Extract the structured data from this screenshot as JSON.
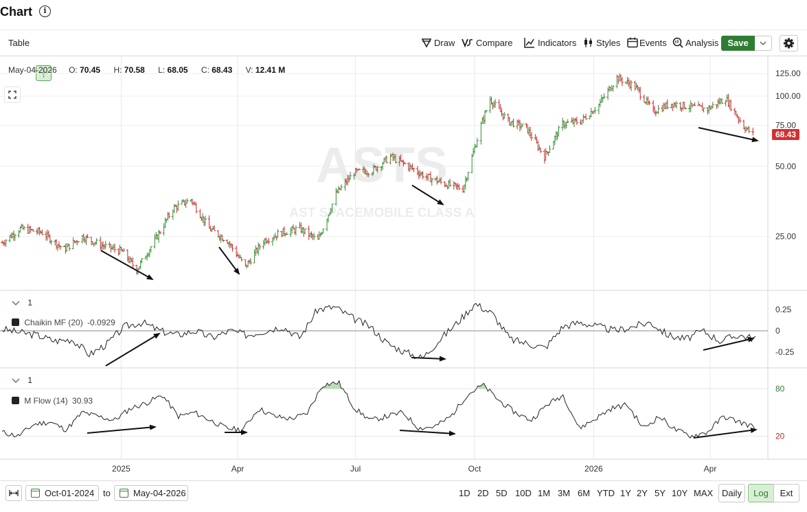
{
  "header": {
    "title": "Chart",
    "info_icon": "info-icon"
  },
  "toolbar": {
    "table_label": "Table",
    "draw_label": "Draw",
    "compare_label": "Compare",
    "indicators_label": "Indicators",
    "styles_label": "Styles",
    "events_label": "Events",
    "analysis_label": "Analysis",
    "save_label": "Save"
  },
  "ohlc": {
    "date": "May-04-2026",
    "open_label": "O:",
    "open": "70.45",
    "high_label": "H:",
    "high": "70.58",
    "low_label": "L:",
    "low": "68.05",
    "close_label": "C:",
    "close": "68.43",
    "volume_label": "V:",
    "volume": "12.41 M"
  },
  "watermark": {
    "symbol": "ASTS",
    "name": "AST SPACEMOBILE CLASS A"
  },
  "panels": {
    "chaikin": {
      "collapse_count": "1",
      "label": "Chaikin MF (20)",
      "value": "-0.0929"
    },
    "mflow": {
      "collapse_count": "1",
      "label": "M Flow (14)",
      "value": "30.93"
    }
  },
  "colors": {
    "up": "#2e8b2e",
    "down": "#c62828",
    "accent": "#2e7d32",
    "last_price_bg": "#d32f2f",
    "mfi_fill": "#b9dfb5"
  },
  "chart_data": {
    "type": "ohlc",
    "price_scale": "log",
    "last_price": "68.43",
    "y_ticks": [
      "125.00",
      "100.00",
      "75.00",
      "50.00",
      "25.00"
    ],
    "x_ticks": [
      "2025",
      "Apr",
      "Jul",
      "Oct",
      "2026",
      "Apr"
    ],
    "price_series": [
      [
        "2024-10-01",
        23.5
      ],
      [
        "2024-10-15",
        27
      ],
      [
        "2024-11-01",
        26
      ],
      [
        "2024-11-18",
        22
      ],
      [
        "2024-12-02",
        25
      ],
      [
        "2024-12-16",
        23
      ],
      [
        "2025-01-02",
        21.5
      ],
      [
        "2025-01-13",
        18
      ],
      [
        "2025-01-27",
        24
      ],
      [
        "2025-02-10",
        33
      ],
      [
        "2025-02-24",
        36
      ],
      [
        "2025-03-10",
        27
      ],
      [
        "2025-03-24",
        24
      ],
      [
        "2025-04-07",
        18.5
      ],
      [
        "2025-04-21",
        24
      ],
      [
        "2025-05-05",
        26
      ],
      [
        "2025-05-19",
        27
      ],
      [
        "2025-06-02",
        24
      ],
      [
        "2025-06-16",
        38
      ],
      [
        "2025-06-30",
        47
      ],
      [
        "2025-07-14",
        48
      ],
      [
        "2025-07-28",
        55
      ],
      [
        "2025-08-11",
        50
      ],
      [
        "2025-08-25",
        45
      ],
      [
        "2025-09-08",
        42
      ],
      [
        "2025-09-22",
        40
      ],
      [
        "2025-10-06",
        75
      ],
      [
        "2025-10-13",
        97
      ],
      [
        "2025-10-27",
        78
      ],
      [
        "2025-11-10",
        73
      ],
      [
        "2025-11-24",
        55
      ],
      [
        "2025-12-08",
        76
      ],
      [
        "2025-12-22",
        78
      ],
      [
        "2026-01-05",
        92
      ],
      [
        "2026-01-19",
        120
      ],
      [
        "2026-02-02",
        110
      ],
      [
        "2026-02-16",
        86
      ],
      [
        "2026-03-02",
        93
      ],
      [
        "2026-03-16",
        90
      ],
      [
        "2026-03-30",
        88
      ],
      [
        "2026-04-13",
        98
      ],
      [
        "2026-04-27",
        74
      ],
      [
        "2026-05-04",
        68.43
      ]
    ],
    "chaikin": {
      "name": "Chaikin MF (20)",
      "y_ticks": [
        "0.25",
        "0",
        "-0.25"
      ],
      "series": [
        0.02,
        -0.02,
        -0.05,
        -0.12,
        -0.1,
        -0.28,
        -0.15,
        0.05,
        0.1,
        0.0,
        -0.05,
        0.0,
        -0.08,
        0.0,
        -0.05,
        0.0,
        0.05,
        -0.08,
        0.25,
        0.28,
        0.15,
        0.05,
        -0.15,
        -0.25,
        -0.32,
        -0.1,
        0.1,
        0.32,
        0.2,
        -0.1,
        -0.15,
        -0.2,
        0.05,
        0.1,
        0.05,
        0.0,
        0.05,
        0.1,
        -0.05,
        -0.1,
        0.0,
        -0.12,
        -0.05,
        -0.09
      ]
    },
    "mflow": {
      "name": "M Flow (14)",
      "y_ticks": [
        "80",
        "20"
      ],
      "series": [
        25,
        20,
        35,
        38,
        28,
        50,
        45,
        40,
        55,
        62,
        72,
        45,
        50,
        40,
        30,
        28,
        55,
        45,
        42,
        48,
        85,
        88,
        55,
        40,
        45,
        50,
        30,
        32,
        45,
        72,
        85,
        65,
        50,
        40,
        60,
        72,
        30,
        42,
        55,
        60,
        30,
        45,
        28,
        20,
        25,
        45,
        38,
        31
      ]
    }
  },
  "bottom": {
    "from_date": "Oct-01-2024",
    "to_label": "to",
    "to_date": "May-04-2026",
    "ranges": [
      "1D",
      "2D",
      "5D",
      "10D",
      "1M",
      "3M",
      "6M",
      "YTD",
      "1Y",
      "2Y",
      "5Y",
      "10Y",
      "MAX"
    ],
    "daily_label": "Daily",
    "log_label": "Log",
    "ext_label": "Ext"
  }
}
